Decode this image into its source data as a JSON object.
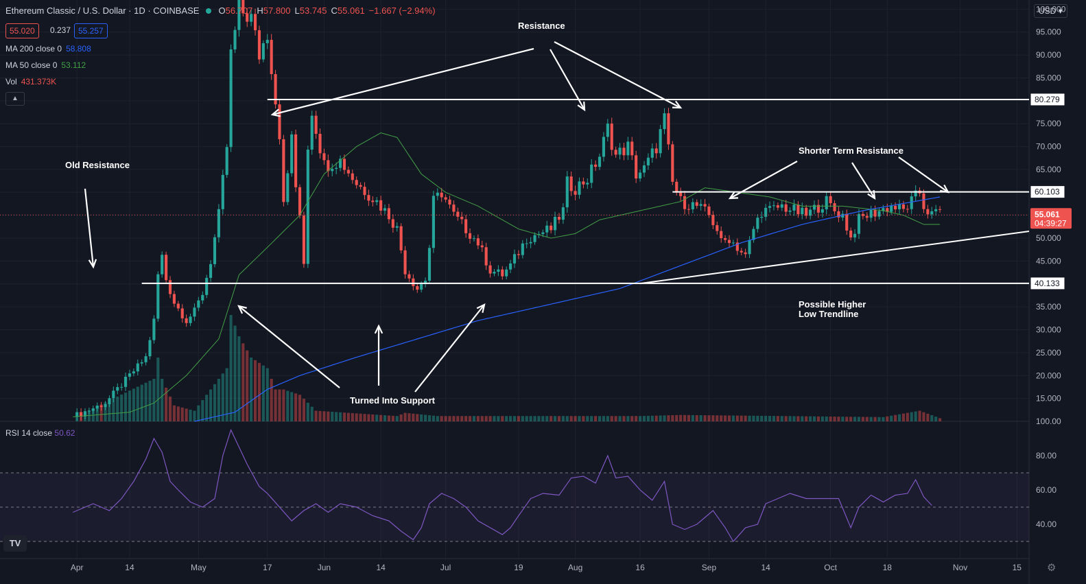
{
  "header": {
    "symbol": "Ethereum Classic / U.S. Dollar · 1D · COINBASE",
    "open_label": "O",
    "open": "56.707",
    "high_label": "H",
    "high": "57.800",
    "low_label": "L",
    "low": "53.745",
    "close_label": "C",
    "close": "55.061",
    "change": "−1.667 (−2.94%)",
    "bid": "55.020",
    "spread": "0.237",
    "ask": "55.257"
  },
  "indicators": {
    "ma200_label": "MA 200 close 0",
    "ma200_value": "58.808",
    "ma50_label": "MA 50 close 0",
    "ma50_value": "53.112",
    "vol_label": "Vol",
    "vol_value": "431.373K",
    "rsi_label": "RSI 14 close",
    "rsi_value": "50.62"
  },
  "currency": "USD",
  "logo_text": "TV",
  "colors": {
    "up": "#26a69a",
    "down": "#ef5350",
    "ma200": "#2962ff",
    "ma50": "#43a047",
    "rsi": "#7e57c2",
    "white": "#ffffff"
  },
  "chart_data": {
    "type": "candlestick",
    "title": "Ethereum Classic / U.S. Dollar",
    "ylim": [
      10,
      102
    ],
    "y_ticks": [
      "100.000",
      "95.000",
      "90.000",
      "85.000",
      "80.000",
      "75.000",
      "70.000",
      "65.000",
      "60.000",
      "55.000",
      "50.000",
      "45.000",
      "40.000",
      "35.000",
      "30.000",
      "25.000",
      "20.000",
      "15.000"
    ],
    "y_tick_values": [
      100,
      95,
      90,
      85,
      80,
      75,
      70,
      65,
      60,
      55,
      50,
      45,
      40,
      35,
      30,
      25,
      20,
      15
    ],
    "x_ticks": [
      "Apr",
      "14",
      "May",
      "17",
      "Jun",
      "14",
      "Jul",
      "19",
      "Aug",
      "16",
      "Sep",
      "14",
      "Oct",
      "18",
      "Nov",
      "15"
    ],
    "x_tick_days": [
      1,
      14,
      31,
      48,
      62,
      76,
      92,
      110,
      124,
      140,
      157,
      171,
      187,
      201,
      219,
      233
    ],
    "price_path": [
      [
        0,
        11
      ],
      [
        8,
        14
      ],
      [
        14,
        20
      ],
      [
        18,
        24
      ],
      [
        20,
        32
      ],
      [
        21,
        42
      ],
      [
        22,
        46
      ],
      [
        23,
        41
      ],
      [
        25,
        36
      ],
      [
        28,
        32
      ],
      [
        30,
        34
      ],
      [
        32,
        38
      ],
      [
        34,
        45
      ],
      [
        36,
        55
      ],
      [
        38,
        70
      ],
      [
        39,
        90
      ],
      [
        41,
        100
      ],
      [
        44,
        98
      ],
      [
        46,
        90
      ],
      [
        48,
        95
      ],
      [
        50,
        80
      ],
      [
        51,
        73
      ],
      [
        52,
        57
      ],
      [
        53,
        64
      ],
      [
        54,
        73
      ],
      [
        55,
        60
      ],
      [
        56,
        55
      ],
      [
        57,
        45
      ],
      [
        58,
        70
      ],
      [
        59,
        78
      ],
      [
        60,
        74
      ],
      [
        62,
        66
      ],
      [
        66,
        67
      ],
      [
        70,
        62
      ],
      [
        75,
        58
      ],
      [
        78,
        55
      ],
      [
        80,
        52
      ],
      [
        82,
        43
      ],
      [
        85,
        39
      ],
      [
        87,
        41
      ],
      [
        88,
        48
      ],
      [
        89,
        58
      ],
      [
        91,
        60
      ],
      [
        94,
        55
      ],
      [
        97,
        52
      ],
      [
        100,
        49
      ],
      [
        103,
        43
      ],
      [
        106,
        42
      ],
      [
        108,
        44
      ],
      [
        110,
        47
      ],
      [
        112,
        50
      ],
      [
        118,
        52
      ],
      [
        121,
        56
      ],
      [
        122,
        62
      ],
      [
        124,
        61
      ],
      [
        127,
        63
      ],
      [
        130,
        68
      ],
      [
        132,
        74
      ],
      [
        134,
        68
      ],
      [
        137,
        70
      ],
      [
        139,
        64
      ],
      [
        141,
        65
      ],
      [
        144,
        70
      ],
      [
        146,
        76
      ],
      [
        148,
        62
      ],
      [
        150,
        58
      ],
      [
        154,
        57
      ],
      [
        157,
        55
      ],
      [
        159,
        52
      ],
      [
        160,
        49
      ],
      [
        162,
        50
      ],
      [
        164,
        48
      ],
      [
        166,
        46
      ],
      [
        168,
        52
      ],
      [
        170,
        56
      ],
      [
        172,
        56
      ],
      [
        175,
        57
      ],
      [
        178,
        56
      ],
      [
        181,
        55
      ],
      [
        184,
        57
      ],
      [
        186,
        58
      ],
      [
        188,
        56
      ],
      [
        190,
        55
      ],
      [
        192,
        50
      ],
      [
        194,
        54
      ],
      [
        196,
        55
      ],
      [
        199,
        56
      ],
      [
        202,
        57
      ],
      [
        205,
        56
      ],
      [
        207,
        58
      ],
      [
        209,
        60
      ],
      [
        210,
        57
      ],
      [
        212,
        55
      ],
      [
        214,
        56
      ]
    ],
    "volume_path": [
      [
        0,
        0.03
      ],
      [
        20,
        0.4
      ],
      [
        21,
        0.6
      ],
      [
        22,
        0.4
      ],
      [
        25,
        0.15
      ],
      [
        30,
        0.1
      ],
      [
        38,
        0.5
      ],
      [
        39,
        1.0
      ],
      [
        41,
        0.8
      ],
      [
        44,
        0.6
      ],
      [
        48,
        0.5
      ],
      [
        50,
        0.3
      ],
      [
        52,
        0.3
      ],
      [
        56,
        0.25
      ],
      [
        60,
        0.1
      ],
      [
        80,
        0.05
      ],
      [
        82,
        0.08
      ],
      [
        90,
        0.05
      ],
      [
        140,
        0.05
      ],
      [
        150,
        0.06
      ],
      [
        200,
        0.04
      ],
      [
        209,
        0.1
      ],
      [
        214,
        0.03
      ]
    ],
    "ma50_path": [
      [
        0,
        11
      ],
      [
        14,
        12
      ],
      [
        20,
        14
      ],
      [
        28,
        20
      ],
      [
        36,
        28
      ],
      [
        41,
        42
      ],
      [
        48,
        48
      ],
      [
        56,
        55
      ],
      [
        62,
        64
      ],
      [
        70,
        70
      ],
      [
        76,
        73
      ],
      [
        80,
        72
      ],
      [
        86,
        64
      ],
      [
        92,
        60
      ],
      [
        100,
        57
      ],
      [
        110,
        52
      ],
      [
        118,
        50
      ],
      [
        124,
        51
      ],
      [
        130,
        54
      ],
      [
        140,
        56
      ],
      [
        150,
        58
      ],
      [
        156,
        61
      ],
      [
        164,
        60
      ],
      [
        172,
        59
      ],
      [
        180,
        57
      ],
      [
        190,
        57
      ],
      [
        200,
        56
      ],
      [
        205,
        55
      ],
      [
        210,
        53
      ],
      [
        214,
        53
      ]
    ],
    "ma200_path": [
      [
        30,
        10
      ],
      [
        40,
        12
      ],
      [
        48,
        17
      ],
      [
        56,
        20
      ],
      [
        70,
        24
      ],
      [
        85,
        28
      ],
      [
        100,
        32
      ],
      [
        120,
        36
      ],
      [
        135,
        39
      ],
      [
        150,
        44
      ],
      [
        165,
        49
      ],
      [
        180,
        53
      ],
      [
        195,
        56
      ],
      [
        214,
        59
      ]
    ],
    "levels": [
      {
        "y": 80.279,
        "label": "80.279",
        "x0": 48,
        "x1": 236
      },
      {
        "y": 60.103,
        "label": "60.103",
        "x0": 148,
        "x1": 236
      },
      {
        "y": 40.133,
        "label": "40.133",
        "x0": 17,
        "x1": 236
      }
    ],
    "trendline": {
      "from": [
        140,
        40.1
      ],
      "to": [
        236,
        51.5
      ]
    },
    "current_price": {
      "value": "55.061",
      "countdown": "04:39:27",
      "y": 55.061
    },
    "annotations": [
      "Resistance",
      "Old Resistance",
      "Shorter Term Resistance",
      "Turned Into Support",
      "Possible Higher",
      "Low Trendline"
    ],
    "rsi": {
      "ylim": [
        20,
        100
      ],
      "ticks": [
        "100.00",
        "80.00",
        "60.00",
        "40.00"
      ],
      "tick_values": [
        100,
        80,
        60,
        40
      ],
      "bands": [
        70,
        50,
        30
      ],
      "path": [
        [
          0,
          47
        ],
        [
          5,
          52
        ],
        [
          9,
          48
        ],
        [
          12,
          55
        ],
        [
          15,
          65
        ],
        [
          18,
          78
        ],
        [
          20,
          90
        ],
        [
          22,
          82
        ],
        [
          24,
          65
        ],
        [
          26,
          60
        ],
        [
          29,
          53
        ],
        [
          32,
          50
        ],
        [
          35,
          55
        ],
        [
          37,
          80
        ],
        [
          39,
          95
        ],
        [
          41,
          85
        ],
        [
          43,
          75
        ],
        [
          46,
          62
        ],
        [
          48,
          58
        ],
        [
          51,
          50
        ],
        [
          54,
          42
        ],
        [
          57,
          48
        ],
        [
          60,
          52
        ],
        [
          63,
          47
        ],
        [
          66,
          52
        ],
        [
          70,
          50
        ],
        [
          74,
          45
        ],
        [
          78,
          42
        ],
        [
          81,
          36
        ],
        [
          84,
          31
        ],
        [
          86,
          38
        ],
        [
          88,
          52
        ],
        [
          91,
          58
        ],
        [
          94,
          55
        ],
        [
          97,
          50
        ],
        [
          100,
          42
        ],
        [
          103,
          38
        ],
        [
          106,
          34
        ],
        [
          108,
          38
        ],
        [
          110,
          45
        ],
        [
          113,
          55
        ],
        [
          116,
          58
        ],
        [
          120,
          57
        ],
        [
          123,
          67
        ],
        [
          126,
          68
        ],
        [
          129,
          64
        ],
        [
          132,
          80
        ],
        [
          134,
          67
        ],
        [
          137,
          68
        ],
        [
          140,
          60
        ],
        [
          143,
          54
        ],
        [
          146,
          65
        ],
        [
          148,
          40
        ],
        [
          151,
          37
        ],
        [
          154,
          40
        ],
        [
          158,
          48
        ],
        [
          161,
          38
        ],
        [
          163,
          30
        ],
        [
          166,
          38
        ],
        [
          169,
          40
        ],
        [
          171,
          52
        ],
        [
          174,
          55
        ],
        [
          177,
          58
        ],
        [
          181,
          55
        ],
        [
          185,
          55
        ],
        [
          189,
          55
        ],
        [
          192,
          38
        ],
        [
          194,
          50
        ],
        [
          197,
          57
        ],
        [
          200,
          53
        ],
        [
          203,
          57
        ],
        [
          206,
          58
        ],
        [
          208,
          66
        ],
        [
          210,
          56
        ],
        [
          212,
          51
        ]
      ],
      "value": 50.62
    }
  }
}
